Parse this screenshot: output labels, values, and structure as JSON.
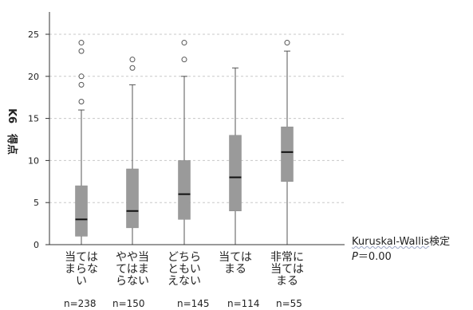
{
  "chart_data": {
    "type": "boxplot",
    "ylabel": "K6　得点",
    "ylim": [
      0,
      27
    ],
    "yticks": [
      "0",
      "5",
      "10",
      "15",
      "20",
      "25"
    ],
    "ytick_values": [
      0,
      5,
      10,
      15,
      20,
      25
    ],
    "grid": true,
    "categories": [
      [
        "当ては",
        "まらな",
        "い"
      ],
      [
        "やや当",
        "てはま",
        "らない"
      ],
      [
        "どちら",
        "ともい",
        "えない"
      ],
      [
        "当ては",
        "まる"
      ],
      [
        "非常に",
        "当ては",
        "まる"
      ]
    ],
    "counts": [
      "n=238",
      "n=150",
      "n=145",
      "n=114",
      "n=55"
    ],
    "boxes": [
      {
        "whisker_low": 0,
        "q1": 1,
        "median": 3,
        "q3": 7,
        "whisker_high": 16,
        "outliers": [
          17,
          19,
          20,
          23,
          24
        ]
      },
      {
        "whisker_low": 0,
        "q1": 2,
        "median": 4,
        "q3": 9,
        "whisker_high": 19,
        "outliers": [
          21,
          22
        ]
      },
      {
        "whisker_low": 0,
        "q1": 3,
        "median": 6,
        "q3": 10,
        "whisker_high": 20,
        "outliers": [
          22,
          24
        ]
      },
      {
        "whisker_low": 0,
        "q1": 4,
        "median": 8,
        "q3": 13,
        "whisker_high": 21,
        "outliers": []
      },
      {
        "whisker_low": 0,
        "q1": 7.5,
        "median": 11,
        "q3": 14,
        "whisker_high": 23,
        "outliers": [
          24
        ]
      }
    ],
    "colors": {
      "box": "#9a9a9a",
      "median": "#111111",
      "whisker": "#555555",
      "grid": "#c8c8c8",
      "axis": "#333333"
    }
  },
  "annotation": {
    "test_name": "Kuruskal-Wallis",
    "test_suffix": "検定",
    "p_symbol": "P",
    "p_value": "＝0.00"
  }
}
